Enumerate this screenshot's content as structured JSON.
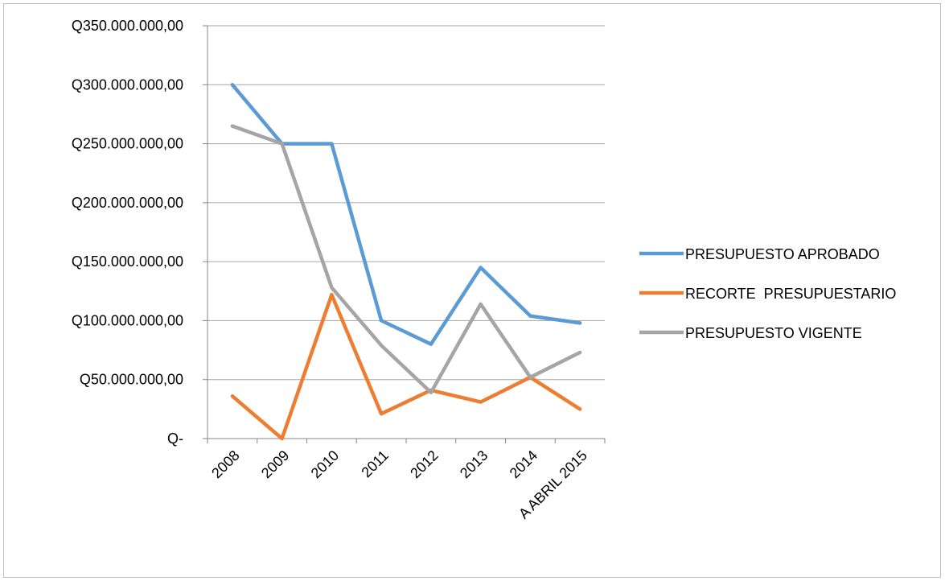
{
  "chart_data": {
    "type": "line",
    "categories": [
      "2008",
      "2009",
      "2010",
      "2011",
      "2012",
      "2013",
      "2014",
      "A ABRIL 2015"
    ],
    "series": [
      {
        "name": "PRESUPUESTO APROBADO",
        "color": "#5b9bd5",
        "values": [
          300000000,
          250000000,
          250000000,
          100000000,
          80000000,
          145000000,
          104000000,
          98000000
        ]
      },
      {
        "name": "RECORTE  PRESUPUESTARIO",
        "color": "#ed7d31",
        "values": [
          36000000,
          0,
          122000000,
          21000000,
          41000000,
          31000000,
          52000000,
          25000000
        ]
      },
      {
        "name": "PRESUPUESTO VIGENTE",
        "color": "#a5a5a5",
        "values": [
          265000000,
          250000000,
          128000000,
          79000000,
          39000000,
          114000000,
          52000000,
          73000000
        ]
      }
    ],
    "y_ticks": [
      "Q-",
      "Q50.000.000,00",
      "Q100.000.000,00",
      "Q150.000.000,00",
      "Q200.000.000,00",
      "Q250.000.000,00",
      "Q300.000.000,00",
      "Q350.000.000,00"
    ],
    "ylim": [
      0,
      350000000
    ],
    "grid": true,
    "legend_position": "right",
    "title": "",
    "xlabel": "",
    "ylabel": ""
  }
}
